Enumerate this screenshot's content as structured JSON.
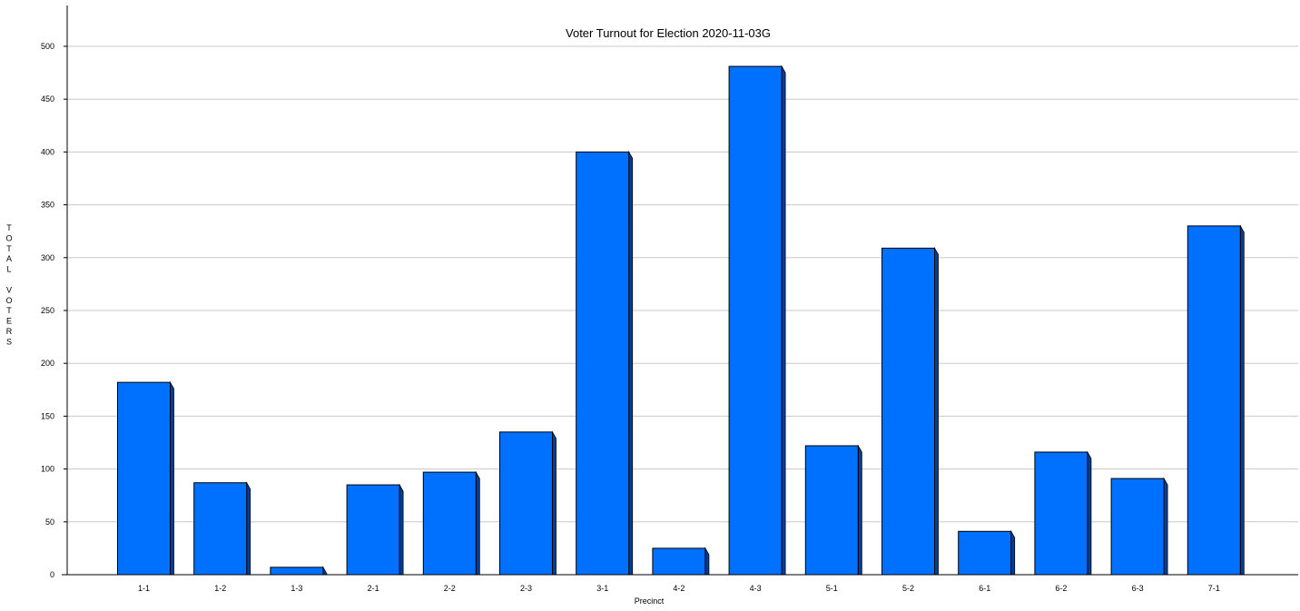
{
  "chart_data": {
    "type": "bar",
    "title": "Voter Turnout for Election 2020-11-03G",
    "xlabel": "Precinct",
    "ylabel": "TOTAL VOTERS",
    "categories": [
      "1-1",
      "1-2",
      "1-3",
      "2-1",
      "2-2",
      "2-3",
      "3-1",
      "4-2",
      "4-3",
      "5-1",
      "5-2",
      "6-1",
      "6-2",
      "6-3",
      "7-1"
    ],
    "values": [
      182,
      87,
      7,
      85,
      97,
      135,
      400,
      25,
      481,
      122,
      309,
      41,
      116,
      91,
      330
    ],
    "ylim": [
      0,
      500
    ],
    "yticks": [
      0,
      50,
      100,
      150,
      200,
      250,
      300,
      350,
      400,
      450,
      500
    ],
    "grid": true,
    "legend": "none",
    "bar_color": "#0070FF",
    "bar_side_color": "#003F99"
  }
}
